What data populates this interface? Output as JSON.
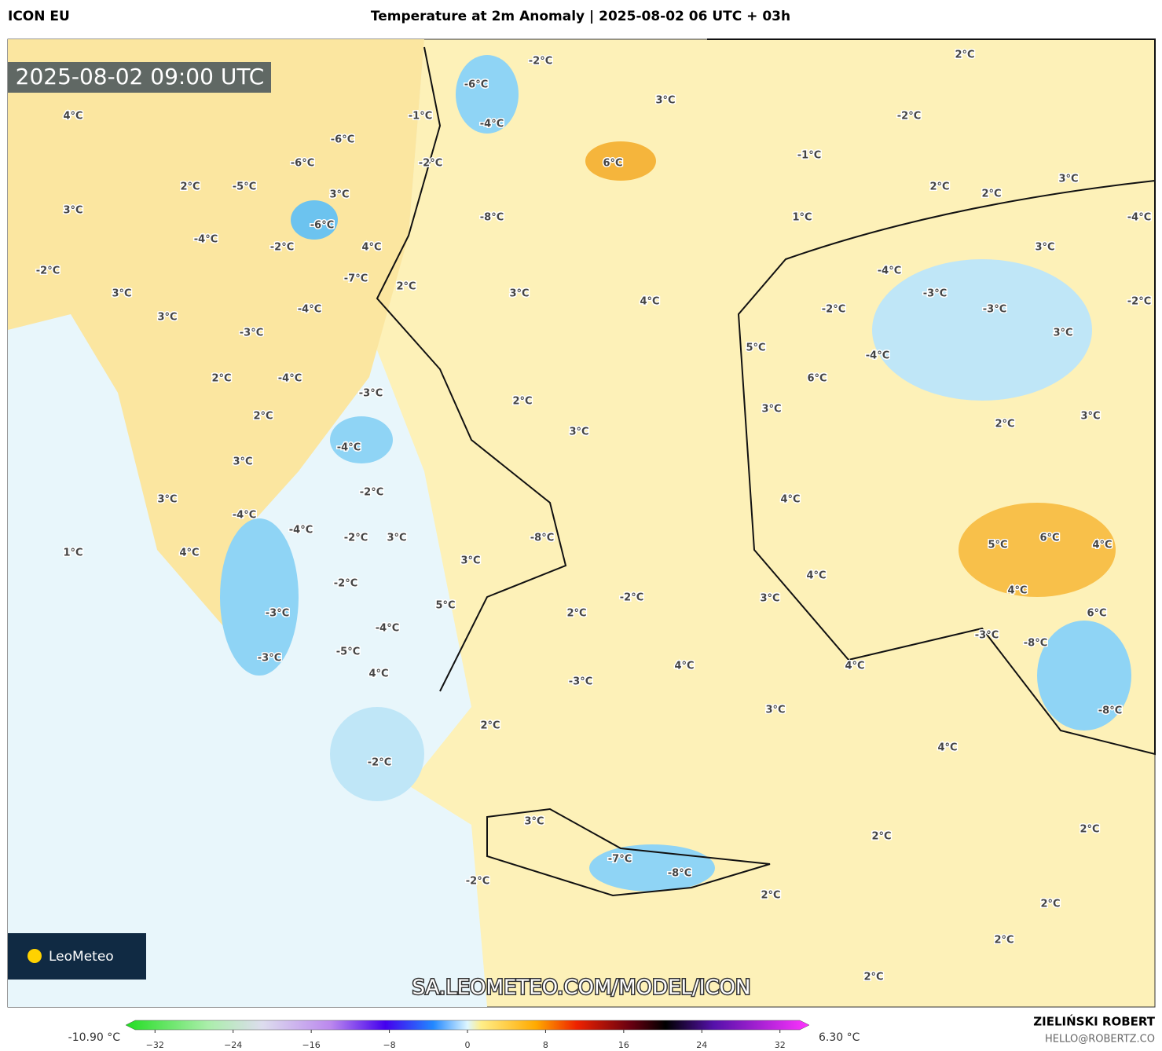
{
  "header": {
    "model": "ICON EU",
    "title": "Temperature at 2m Anomaly | 2025-08-02 06 UTC + 03h"
  },
  "map": {
    "timestamp": "2025-08-02 09:00 UTC",
    "logo": "LeoMeteo",
    "url": "SA.LEOMETEO.COM/MODEL/ICON",
    "labels": [
      "4°C",
      "3°C",
      "2°C",
      "-5°C",
      "-6°C",
      "-6°C",
      "3°C",
      "-6°C",
      "-2°C",
      "-1°C",
      "-6°C",
      "-2°C",
      "-4°C",
      "6°C",
      "3°C",
      "-8°C",
      "-2°C",
      "-1°C",
      "2°C",
      "2°C",
      "2°C",
      "3°C",
      "-4°C",
      "1°C",
      "-2°C",
      "-4°C",
      "-2°C",
      "4°C",
      "-7°C",
      "2°C",
      "3°C",
      "4°C",
      "3°C",
      "3°C",
      "-4°C",
      "-3°C",
      "2°C",
      "-4°C",
      "-3°C",
      "2°C",
      "3°C",
      "2°C",
      "-4°C",
      "3°C",
      "3°C",
      "-2°C",
      "-4°C",
      "-4°C",
      "-2°C",
      "3°C",
      "-8°C",
      "3°C",
      "4°C",
      "1°C",
      "-2°C",
      "-3°C",
      "5°C",
      "2°C",
      "-2°C",
      "-4°C",
      "-5°C",
      "-3°C",
      "4°C",
      "-3°C",
      "4°C",
      "2°C",
      "-2°C",
      "-4°C",
      "-3°C",
      "-3°C",
      "-2°C",
      "3°C",
      "-2°C",
      "5°C",
      "-4°C",
      "6°C",
      "3°C",
      "3°C",
      "2°C",
      "3°C",
      "4°C",
      "5°C",
      "6°C",
      "4°C",
      "4°C",
      "3°C",
      "4°C",
      "6°C",
      "-3°C",
      "-8°C",
      "4°C",
      "-8°C",
      "3°C",
      "4°C",
      "3°C",
      "2°C",
      "2°C",
      "-7°C",
      "-8°C",
      "-2°C",
      "2°C",
      "2°C",
      "2°C",
      "2°C"
    ]
  },
  "colorbar": {
    "min_label": "-10.90 °C",
    "max_label": "6.30 °C",
    "lim": [
      -35,
      35
    ],
    "ticks": [
      {
        "value": -32,
        "label": "−32"
      },
      {
        "value": -24,
        "label": "−24"
      },
      {
        "value": -16,
        "label": "−16"
      },
      {
        "value": -8,
        "label": "−8"
      },
      0,
      8,
      16,
      24,
      32
    ]
  },
  "credits": {
    "author": "ZIELIŃSKI ROBERT",
    "email": "HELLO@ROBERTZ.CO"
  }
}
